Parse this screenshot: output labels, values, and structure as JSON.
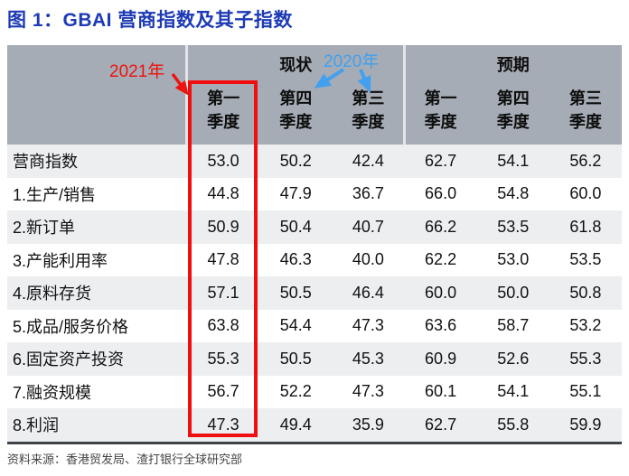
{
  "figure": {
    "title": "图 1：GBAI 营商指数及其子指数",
    "source": "资料来源：香港贸发局、渣打银行全球研究部"
  },
  "annotations": {
    "year_2021_label": "2021年",
    "year_2020_label": "2020年"
  },
  "colors": {
    "title_blue": "#1D3AB5",
    "annotation_red": "#ED1310",
    "annotation_blue": "#41A0F0",
    "header_gray": "#A6ACB5",
    "row_alt_gray": "#ECEEF0",
    "highlight_box_red": "#F10E0E",
    "table_bottom_border": "#3E434A"
  },
  "chart_data": {
    "type": "table",
    "title": "图 1：GBAI 营商指数及其子指数",
    "column_groups": [
      {
        "label": "现状",
        "span": 3
      },
      {
        "label": "预期",
        "span": 3
      }
    ],
    "columns": [
      {
        "line1": "第一",
        "line2": "季度"
      },
      {
        "line1": "第四",
        "line2": "季度"
      },
      {
        "line1": "第三",
        "line2": "季度"
      },
      {
        "line1": "第一",
        "line2": "季度"
      },
      {
        "line1": "第四",
        "line2": "季度"
      },
      {
        "line1": "第三",
        "line2": "季度"
      }
    ],
    "rows": [
      {
        "label": "营商指数",
        "values": [
          "53.0",
          "50.2",
          "42.4",
          "62.7",
          "54.1",
          "56.2"
        ]
      },
      {
        "label": "1.生产/销售",
        "values": [
          "44.8",
          "47.9",
          "36.7",
          "66.0",
          "54.8",
          "60.0"
        ]
      },
      {
        "label": "2.新订单",
        "values": [
          "50.9",
          "50.4",
          "40.7",
          "66.2",
          "53.5",
          "61.8"
        ]
      },
      {
        "label": "3.产能利用率",
        "values": [
          "47.8",
          "46.3",
          "40.0",
          "62.2",
          "53.0",
          "53.5"
        ]
      },
      {
        "label": "4.原料存货",
        "values": [
          "57.1",
          "50.5",
          "46.4",
          "60.0",
          "50.0",
          "50.8"
        ]
      },
      {
        "label": "5.成品/服务价格",
        "values": [
          "63.8",
          "54.4",
          "47.3",
          "63.6",
          "58.7",
          "53.2"
        ]
      },
      {
        "label": "6.固定资产投资",
        "values": [
          "55.3",
          "50.5",
          "45.3",
          "60.9",
          "52.6",
          "55.3"
        ]
      },
      {
        "label": "7.融资规模",
        "values": [
          "56.7",
          "52.2",
          "47.3",
          "60.1",
          "54.1",
          "55.1"
        ]
      },
      {
        "label": "8.利润",
        "values": [
          "47.3",
          "49.4",
          "35.9",
          "62.7",
          "55.8",
          "59.9"
        ]
      }
    ]
  }
}
